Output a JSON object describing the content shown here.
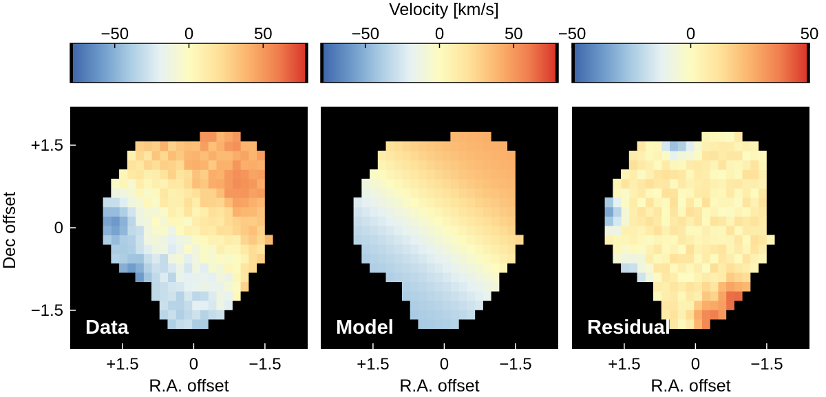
{
  "figure": {
    "colorbar_label": "Velocity [km/s]",
    "ylabel": "Dec offset",
    "xlabel": "R.A. offset"
  },
  "colormap": [
    "#3b63a8",
    "#6b98c9",
    "#a9cbe3",
    "#e6f1f3",
    "#fdfbc0",
    "#fee199",
    "#fbb36c",
    "#f07e4e",
    "#d73027"
  ],
  "background_color": "#000000",
  "chart_data": [
    {
      "type": "heatmap",
      "title": "Data",
      "xlabel": "R.A. offset",
      "ylabel": "Dec offset",
      "x_ticks": [
        1.5,
        0,
        -1.5
      ],
      "x_tick_labels": [
        "+1.5",
        "0",
        "−1.5"
      ],
      "y_ticks": [
        1.5,
        0,
        -1.5
      ],
      "y_tick_labels": [
        "+1.5",
        "0",
        "−1.5"
      ],
      "xlim": [
        2.6,
        -2.4
      ],
      "ylim": [
        -2.2,
        2.2
      ],
      "colorbar": {
        "label": "Velocity [km/s]",
        "range": [
          -80,
          80
        ],
        "ticks": [
          -50,
          0,
          50
        ],
        "tick_labels": [
          "−50",
          "0",
          "50"
        ]
      },
      "pixel_scale": 0.17,
      "velocity_field": {
        "max_velocity": 45,
        "position_angle_deg": 55,
        "turnover_radius": 1.2,
        "offset": 5,
        "noise": 9
      },
      "hot_spots": [
        {
          "x": -1.45,
          "y": -1.35,
          "v": 85
        },
        {
          "x": -1.0,
          "y": 0.7,
          "v": 55
        },
        {
          "x": 1.2,
          "y": -1.0,
          "v": -65
        },
        {
          "x": 1.6,
          "y": 0.0,
          "v": -60
        }
      ]
    },
    {
      "type": "heatmap",
      "title": "Model",
      "xlabel": "R.A. offset",
      "ylabel": "",
      "x_ticks": [
        1.5,
        0,
        -1.5
      ],
      "x_tick_labels": [
        "+1.5",
        "0",
        "−1.5"
      ],
      "xlim": [
        2.6,
        -2.4
      ],
      "ylim": [
        -2.2,
        2.2
      ],
      "colorbar": {
        "label": "",
        "range": [
          -80,
          80
        ],
        "ticks": [
          -50,
          0,
          50
        ],
        "tick_labels": [
          "−50",
          "0",
          "50"
        ]
      },
      "pixel_scale": 0.17,
      "velocity_field": {
        "max_velocity": 45,
        "position_angle_deg": 55,
        "turnover_radius": 1.2,
        "offset": 0,
        "noise": 0
      },
      "hot_spots": []
    },
    {
      "type": "heatmap",
      "title": "Residual",
      "xlabel": "R.A. offset",
      "ylabel": "",
      "x_ticks": [
        1.5,
        0,
        -1.5
      ],
      "x_tick_labels": [
        "+1.5",
        "0",
        "−1.5"
      ],
      "xlim": [
        2.6,
        -2.4
      ],
      "ylim": [
        -2.2,
        2.2
      ],
      "colorbar": {
        "label": "",
        "range": [
          -50,
          50
        ],
        "ticks": [
          -50,
          0,
          50
        ],
        "tick_labels": [
          "−50",
          "0",
          "50"
        ]
      },
      "pixel_scale": 0.17,
      "velocity_field": {
        "max_velocity": 0,
        "position_angle_deg": 55,
        "turnover_radius": 1.2,
        "offset": 6,
        "noise": 7
      },
      "hot_spots": [
        {
          "x": -0.9,
          "y": -1.4,
          "v": 45
        },
        {
          "x": -0.4,
          "y": -1.75,
          "v": 40
        },
        {
          "x": 1.8,
          "y": 0.2,
          "v": -35
        },
        {
          "x": 0.3,
          "y": 1.6,
          "v": -40
        },
        {
          "x": 1.3,
          "y": -1.0,
          "v": -30
        }
      ]
    }
  ]
}
